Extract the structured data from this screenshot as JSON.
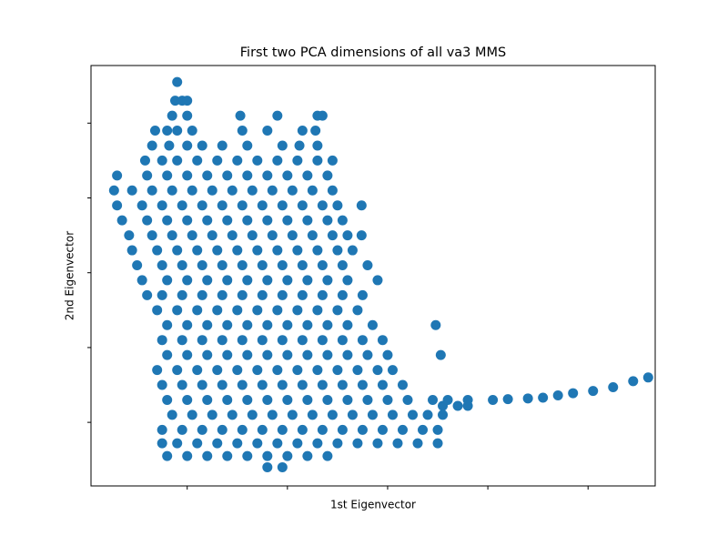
{
  "chart_data": {
    "type": "scatter",
    "title": "First two PCA dimensions of all va3 MMS",
    "x_label": "1st Eigenvector",
    "y_label": "2nd Eigenvector",
    "color": "#1f77b4",
    "xlim": [
      0.04,
      5.67
    ],
    "ylim": [
      0.15,
      5.77
    ],
    "xticks": [
      1,
      2,
      3,
      4,
      5
    ],
    "yticks": [
      1,
      2,
      3,
      4,
      5
    ],
    "x": [
      0.9,
      0.88,
      0.95,
      1.0,
      0.85,
      1.0,
      1.53,
      1.9,
      2.3,
      2.35,
      0.68,
      0.8,
      0.9,
      1.05,
      1.55,
      1.8,
      2.15,
      2.28,
      0.65,
      0.82,
      1.0,
      1.15,
      1.35,
      1.6,
      1.95,
      2.12,
      2.3,
      0.58,
      0.75,
      0.9,
      1.1,
      1.3,
      1.5,
      1.7,
      1.9,
      2.1,
      2.3,
      2.45,
      0.3,
      0.6,
      0.8,
      1.0,
      1.2,
      1.4,
      1.6,
      1.8,
      2.0,
      2.2,
      2.4,
      0.27,
      0.45,
      0.65,
      0.85,
      1.05,
      1.25,
      1.45,
      1.65,
      1.85,
      2.05,
      2.25,
      2.45,
      0.3,
      0.55,
      0.75,
      0.95,
      1.15,
      1.35,
      1.55,
      1.75,
      1.95,
      2.15,
      2.35,
      2.5,
      2.74,
      0.35,
      0.6,
      0.8,
      1.0,
      1.2,
      1.4,
      1.6,
      1.8,
      2.0,
      2.2,
      2.4,
      2.55,
      0.42,
      0.65,
      0.85,
      1.05,
      1.25,
      1.45,
      1.65,
      1.85,
      2.05,
      2.25,
      2.45,
      2.6,
      2.74,
      0.45,
      0.7,
      0.9,
      1.1,
      1.3,
      1.5,
      1.7,
      1.9,
      2.1,
      2.3,
      2.5,
      2.65,
      0.5,
      0.75,
      0.95,
      1.15,
      1.35,
      1.55,
      1.75,
      1.95,
      2.15,
      2.35,
      2.55,
      2.8,
      0.55,
      0.8,
      1.0,
      1.2,
      1.4,
      1.6,
      1.8,
      2.0,
      2.2,
      2.4,
      2.6,
      2.9,
      0.6,
      0.75,
      0.95,
      1.15,
      1.35,
      1.55,
      1.75,
      1.95,
      2.15,
      2.35,
      2.55,
      2.75,
      0.7,
      0.9,
      1.1,
      1.3,
      1.5,
      1.7,
      1.9,
      2.1,
      2.3,
      2.5,
      2.7,
      0.8,
      1.0,
      1.2,
      1.4,
      1.6,
      1.8,
      2.0,
      2.2,
      2.4,
      2.6,
      2.85,
      3.48,
      0.75,
      0.95,
      1.15,
      1.35,
      1.55,
      1.75,
      1.95,
      2.15,
      2.35,
      2.55,
      2.75,
      2.95,
      0.8,
      1.0,
      1.2,
      1.4,
      1.6,
      1.8,
      2.0,
      2.2,
      2.4,
      2.6,
      2.8,
      3.0,
      3.53,
      0.7,
      0.9,
      1.1,
      1.3,
      1.5,
      1.7,
      1.9,
      2.1,
      2.3,
      2.5,
      2.7,
      2.9,
      3.05,
      0.75,
      0.95,
      1.15,
      1.35,
      1.55,
      1.75,
      1.95,
      2.15,
      2.35,
      2.55,
      2.75,
      2.95,
      3.15,
      3.55,
      3.7,
      3.8,
      4.05,
      4.2,
      4.4,
      4.55,
      4.7,
      4.85,
      5.05,
      5.25,
      5.45,
      5.6,
      0.8,
      1.0,
      1.2,
      1.4,
      1.6,
      1.8,
      2.0,
      2.2,
      2.4,
      2.6,
      2.8,
      3.0,
      3.2,
      3.45,
      3.6,
      3.8,
      0.85,
      1.05,
      1.25,
      1.45,
      1.65,
      1.85,
      2.05,
      2.25,
      2.45,
      2.65,
      2.85,
      3.05,
      3.25,
      3.4,
      3.55,
      0.75,
      0.95,
      1.15,
      1.35,
      1.55,
      1.75,
      1.95,
      2.15,
      2.35,
      2.55,
      2.75,
      2.95,
      3.15,
      3.35,
      3.5,
      0.75,
      0.9,
      1.1,
      1.3,
      1.5,
      1.7,
      1.9,
      2.1,
      2.3,
      2.5,
      2.7,
      2.9,
      3.1,
      3.3,
      3.5,
      0.8,
      1.0,
      1.2,
      1.4,
      1.6,
      1.8,
      2.0,
      2.2,
      2.4,
      1.8,
      1.95
    ],
    "values": [
      5.55,
      5.3,
      5.3,
      5.3,
      5.1,
      5.1,
      5.1,
      5.1,
      5.1,
      5.1,
      4.9,
      4.9,
      4.9,
      4.9,
      4.9,
      4.9,
      4.9,
      4.9,
      4.7,
      4.7,
      4.7,
      4.7,
      4.7,
      4.7,
      4.7,
      4.7,
      4.7,
      4.5,
      4.5,
      4.5,
      4.5,
      4.5,
      4.5,
      4.5,
      4.5,
      4.5,
      4.5,
      4.5,
      4.3,
      4.3,
      4.3,
      4.3,
      4.3,
      4.3,
      4.3,
      4.3,
      4.3,
      4.3,
      4.3,
      4.1,
      4.1,
      4.1,
      4.1,
      4.1,
      4.1,
      4.1,
      4.1,
      4.1,
      4.1,
      4.1,
      4.1,
      3.9,
      3.9,
      3.9,
      3.9,
      3.9,
      3.9,
      3.9,
      3.9,
      3.9,
      3.9,
      3.9,
      3.9,
      3.9,
      3.7,
      3.7,
      3.7,
      3.7,
      3.7,
      3.7,
      3.7,
      3.7,
      3.7,
      3.7,
      3.7,
      3.7,
      3.5,
      3.5,
      3.5,
      3.5,
      3.5,
      3.5,
      3.5,
      3.5,
      3.5,
      3.5,
      3.5,
      3.5,
      3.5,
      3.3,
      3.3,
      3.3,
      3.3,
      3.3,
      3.3,
      3.3,
      3.3,
      3.3,
      3.3,
      3.3,
      3.3,
      3.1,
      3.1,
      3.1,
      3.1,
      3.1,
      3.1,
      3.1,
      3.1,
      3.1,
      3.1,
      3.1,
      3.1,
      2.9,
      2.9,
      2.9,
      2.9,
      2.9,
      2.9,
      2.9,
      2.9,
      2.9,
      2.9,
      2.9,
      2.9,
      2.7,
      2.7,
      2.7,
      2.7,
      2.7,
      2.7,
      2.7,
      2.7,
      2.7,
      2.7,
      2.7,
      2.7,
      2.5,
      2.5,
      2.5,
      2.5,
      2.5,
      2.5,
      2.5,
      2.5,
      2.5,
      2.5,
      2.5,
      2.3,
      2.3,
      2.3,
      2.3,
      2.3,
      2.3,
      2.3,
      2.3,
      2.3,
      2.3,
      2.3,
      2.3,
      2.1,
      2.1,
      2.1,
      2.1,
      2.1,
      2.1,
      2.1,
      2.1,
      2.1,
      2.1,
      2.1,
      2.1,
      1.9,
      1.9,
      1.9,
      1.9,
      1.9,
      1.9,
      1.9,
      1.9,
      1.9,
      1.9,
      1.9,
      1.9,
      1.9,
      1.7,
      1.7,
      1.7,
      1.7,
      1.7,
      1.7,
      1.7,
      1.7,
      1.7,
      1.7,
      1.7,
      1.7,
      1.7,
      1.5,
      1.5,
      1.5,
      1.5,
      1.5,
      1.5,
      1.5,
      1.5,
      1.5,
      1.5,
      1.5,
      1.5,
      1.5,
      1.22,
      1.22,
      1.22,
      1.3,
      1.31,
      1.32,
      1.33,
      1.36,
      1.39,
      1.42,
      1.47,
      1.55,
      1.6,
      1.3,
      1.3,
      1.3,
      1.3,
      1.3,
      1.3,
      1.3,
      1.3,
      1.3,
      1.3,
      1.3,
      1.3,
      1.3,
      1.3,
      1.3,
      1.3,
      1.1,
      1.1,
      1.1,
      1.1,
      1.1,
      1.1,
      1.1,
      1.1,
      1.1,
      1.1,
      1.1,
      1.1,
      1.1,
      1.1,
      1.1,
      0.9,
      0.9,
      0.9,
      0.9,
      0.9,
      0.9,
      0.9,
      0.9,
      0.9,
      0.9,
      0.9,
      0.9,
      0.9,
      0.9,
      0.9,
      0.72,
      0.72,
      0.72,
      0.72,
      0.72,
      0.72,
      0.72,
      0.72,
      0.72,
      0.72,
      0.72,
      0.72,
      0.72,
      0.72,
      0.72,
      0.55,
      0.55,
      0.55,
      0.55,
      0.55,
      0.55,
      0.55,
      0.55,
      0.55,
      0.4,
      0.4
    ]
  }
}
